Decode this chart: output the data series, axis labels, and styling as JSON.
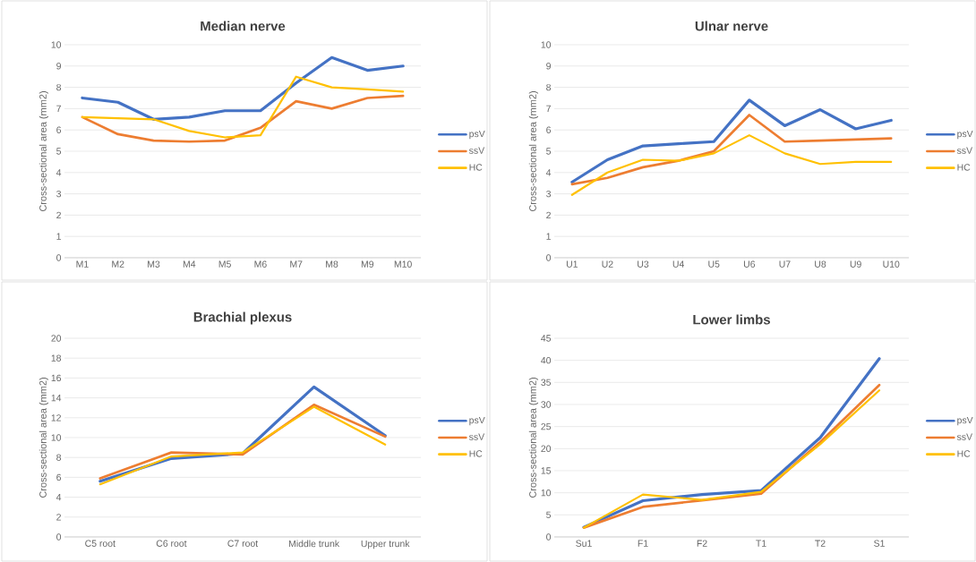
{
  "chart_data": [
    {
      "type": "line",
      "title": "Median nerve",
      "ylabel": "Cross-sectional area (mm2)",
      "categories": [
        "M1",
        "M2",
        "M3",
        "M4",
        "M5",
        "M6",
        "M7",
        "M8",
        "M9",
        "M10"
      ],
      "ylim": [
        0,
        10
      ],
      "yticks": [
        0,
        1,
        2,
        3,
        4,
        5,
        6,
        7,
        8,
        9,
        10
      ],
      "grid": "y",
      "legend": "right",
      "series": [
        {
          "name": "psV",
          "color": "#4472c4",
          "values": [
            7.5,
            7.3,
            6.5,
            6.6,
            6.9,
            6.9,
            8.2,
            9.4,
            8.8,
            9.0
          ]
        },
        {
          "name": "ssV",
          "color": "#ed7d31",
          "values": [
            6.6,
            5.8,
            5.5,
            5.45,
            5.5,
            6.1,
            7.35,
            7.0,
            7.5,
            7.6
          ]
        },
        {
          "name": "HC",
          "color": "#ffc000",
          "values": [
            6.6,
            6.55,
            6.5,
            5.95,
            5.65,
            5.75,
            8.5,
            8.0,
            7.9,
            7.8
          ]
        }
      ]
    },
    {
      "type": "line",
      "title": "Ulnar nerve",
      "ylabel": "Cross-sectional area (mm2)",
      "categories": [
        "U1",
        "U2",
        "U3",
        "U4",
        "U5",
        "U6",
        "U7",
        "U8",
        "U9",
        "U10"
      ],
      "ylim": [
        0,
        10
      ],
      "yticks": [
        0,
        1,
        2,
        3,
        4,
        5,
        6,
        7,
        8,
        9,
        10
      ],
      "grid": "y",
      "legend": "right",
      "series": [
        {
          "name": "psV",
          "color": "#4472c4",
          "values": [
            3.55,
            4.6,
            5.25,
            5.35,
            5.45,
            7.4,
            6.2,
            6.95,
            6.05,
            6.45
          ]
        },
        {
          "name": "ssV",
          "color": "#ed7d31",
          "values": [
            3.45,
            3.75,
            4.25,
            4.55,
            5.0,
            6.7,
            5.45,
            5.5,
            5.55,
            5.6
          ]
        },
        {
          "name": "HC",
          "color": "#ffc000",
          "values": [
            2.95,
            4.0,
            4.6,
            4.55,
            4.9,
            5.75,
            4.9,
            4.4,
            4.5,
            4.5
          ]
        }
      ]
    },
    {
      "type": "line",
      "title": "Brachial plexus",
      "ylabel": "Cross-sectional area (mm2)",
      "categories": [
        "C5 root",
        "C6 root",
        "C7 root",
        "Middle trunk",
        "Upper trunk"
      ],
      "ylim": [
        0,
        20
      ],
      "yticks": [
        0,
        2,
        4,
        6,
        8,
        10,
        12,
        14,
        16,
        18,
        20
      ],
      "grid": "y",
      "legend": "right",
      "series": [
        {
          "name": "psV",
          "color": "#4472c4",
          "values": [
            5.6,
            7.9,
            8.4,
            15.1,
            10.2
          ]
        },
        {
          "name": "ssV",
          "color": "#ed7d31",
          "values": [
            5.9,
            8.5,
            8.3,
            13.3,
            10.1
          ]
        },
        {
          "name": "HC",
          "color": "#ffc000",
          "values": [
            5.3,
            8.1,
            8.5,
            13.1,
            9.3
          ]
        }
      ]
    },
    {
      "type": "line",
      "title": "Lower limbs",
      "ylabel": "Cross-sectional area (mm2)",
      "categories": [
        "Su1",
        "F1",
        "F2",
        "T1",
        "T2",
        "S1"
      ],
      "ylim": [
        0,
        45
      ],
      "yticks": [
        0,
        5,
        10,
        15,
        20,
        25,
        30,
        35,
        40,
        45
      ],
      "grid": "y",
      "legend": "right",
      "series": [
        {
          "name": "psV",
          "color": "#4472c4",
          "values": [
            2.2,
            8.2,
            9.6,
            10.5,
            22.5,
            40.4
          ]
        },
        {
          "name": "ssV",
          "color": "#ed7d31",
          "values": [
            2.1,
            6.8,
            8.3,
            9.8,
            21.5,
            34.4
          ]
        },
        {
          "name": "HC",
          "color": "#ffc000",
          "values": [
            2.1,
            9.6,
            8.4,
            10.2,
            21.0,
            33.2
          ]
        }
      ]
    }
  ]
}
